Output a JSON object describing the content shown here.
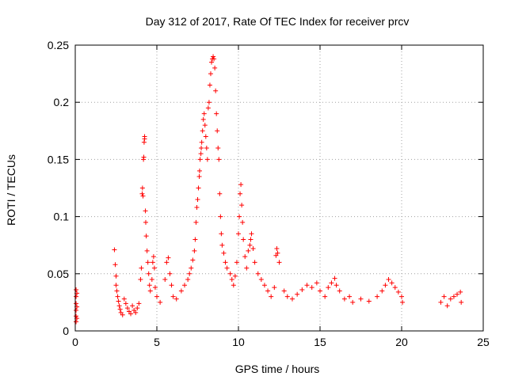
{
  "chart_data": {
    "type": "scatter",
    "title": "Day 312 of 2017, Rate Of TEC Index for receiver prcv",
    "xlabel": "GPS time / hours",
    "ylabel": "ROTI / TECUs",
    "xlim": [
      0,
      25
    ],
    "ylim": [
      0,
      0.25
    ],
    "xticks": [
      0,
      5,
      10,
      15,
      20,
      25
    ],
    "yticks": [
      0,
      0.05,
      0.1,
      0.15,
      0.2,
      0.25
    ],
    "xtick_labels": [
      "0",
      "5",
      "10",
      "15",
      "20",
      "25"
    ],
    "ytick_labels": [
      "0",
      "0.05",
      "0.1",
      "0.15",
      "0.2",
      "0.25"
    ],
    "grid": true,
    "marker": "+",
    "marker_color": "#ff0000",
    "series": [
      {
        "points": [
          [
            0.05,
            0.036
          ],
          [
            0.05,
            0.03
          ],
          [
            0.05,
            0.024
          ],
          [
            0.05,
            0.018
          ],
          [
            0.05,
            0.013
          ],
          [
            0.05,
            0.008
          ],
          [
            0.1,
            0.033
          ],
          [
            0.1,
            0.021
          ],
          [
            0.1,
            0.011
          ],
          [
            2.4,
            0.071
          ],
          [
            2.45,
            0.058
          ],
          [
            2.5,
            0.048
          ],
          [
            2.5,
            0.04
          ],
          [
            2.55,
            0.035
          ],
          [
            2.6,
            0.03
          ],
          [
            2.65,
            0.026
          ],
          [
            2.7,
            0.022
          ],
          [
            2.75,
            0.019
          ],
          [
            2.8,
            0.016
          ],
          [
            2.9,
            0.014
          ],
          [
            3.0,
            0.028
          ],
          [
            3.1,
            0.024
          ],
          [
            3.2,
            0.02
          ],
          [
            3.3,
            0.017
          ],
          [
            3.4,
            0.015
          ],
          [
            3.5,
            0.022
          ],
          [
            3.6,
            0.018
          ],
          [
            3.7,
            0.016
          ],
          [
            3.8,
            0.02
          ],
          [
            3.9,
            0.024
          ],
          [
            4.0,
            0.045
          ],
          [
            4.05,
            0.055
          ],
          [
            4.1,
            0.12
          ],
          [
            4.12,
            0.125
          ],
          [
            4.15,
            0.118
          ],
          [
            4.18,
            0.15
          ],
          [
            4.2,
            0.152
          ],
          [
            4.22,
            0.165
          ],
          [
            4.25,
            0.17
          ],
          [
            4.25,
            0.168
          ],
          [
            4.3,
            0.105
          ],
          [
            4.32,
            0.095
          ],
          [
            4.35,
            0.083
          ],
          [
            4.4,
            0.07
          ],
          [
            4.45,
            0.06
          ],
          [
            4.5,
            0.05
          ],
          [
            4.55,
            0.04
          ],
          [
            4.6,
            0.035
          ],
          [
            4.7,
            0.045
          ],
          [
            4.75,
            0.06
          ],
          [
            4.8,
            0.065
          ],
          [
            4.85,
            0.055
          ],
          [
            4.9,
            0.038
          ],
          [
            5.0,
            0.03
          ],
          [
            5.2,
            0.025
          ],
          [
            5.5,
            0.045
          ],
          [
            5.6,
            0.06
          ],
          [
            5.7,
            0.064
          ],
          [
            5.8,
            0.05
          ],
          [
            5.9,
            0.04
          ],
          [
            6.0,
            0.03
          ],
          [
            6.2,
            0.028
          ],
          [
            6.5,
            0.035
          ],
          [
            6.7,
            0.04
          ],
          [
            6.9,
            0.045
          ],
          [
            7.0,
            0.05
          ],
          [
            7.1,
            0.055
          ],
          [
            7.2,
            0.062
          ],
          [
            7.3,
            0.07
          ],
          [
            7.35,
            0.08
          ],
          [
            7.4,
            0.095
          ],
          [
            7.45,
            0.108
          ],
          [
            7.5,
            0.115
          ],
          [
            7.55,
            0.125
          ],
          [
            7.6,
            0.135
          ],
          [
            7.62,
            0.14
          ],
          [
            7.65,
            0.15
          ],
          [
            7.7,
            0.155
          ],
          [
            7.72,
            0.16
          ],
          [
            7.75,
            0.165
          ],
          [
            7.8,
            0.175
          ],
          [
            7.85,
            0.185
          ],
          [
            7.9,
            0.19
          ],
          [
            7.95,
            0.18
          ],
          [
            8.0,
            0.17
          ],
          [
            8.05,
            0.16
          ],
          [
            8.1,
            0.15
          ],
          [
            8.15,
            0.195
          ],
          [
            8.2,
            0.2
          ],
          [
            8.25,
            0.215
          ],
          [
            8.3,
            0.225
          ],
          [
            8.35,
            0.235
          ],
          [
            8.4,
            0.238
          ],
          [
            8.45,
            0.24
          ],
          [
            8.5,
            0.238
          ],
          [
            8.55,
            0.23
          ],
          [
            8.6,
            0.21
          ],
          [
            8.65,
            0.19
          ],
          [
            8.7,
            0.175
          ],
          [
            8.75,
            0.16
          ],
          [
            8.8,
            0.15
          ],
          [
            8.85,
            0.12
          ],
          [
            8.9,
            0.1
          ],
          [
            8.95,
            0.085
          ],
          [
            9.0,
            0.075
          ],
          [
            9.1,
            0.068
          ],
          [
            9.2,
            0.06
          ],
          [
            9.3,
            0.055
          ],
          [
            9.5,
            0.05
          ],
          [
            9.6,
            0.045
          ],
          [
            9.7,
            0.04
          ],
          [
            9.8,
            0.048
          ],
          [
            9.9,
            0.06
          ],
          [
            10.0,
            0.085
          ],
          [
            10.05,
            0.1
          ],
          [
            10.1,
            0.12
          ],
          [
            10.15,
            0.128
          ],
          [
            10.2,
            0.11
          ],
          [
            10.25,
            0.095
          ],
          [
            10.3,
            0.08
          ],
          [
            10.4,
            0.065
          ],
          [
            10.5,
            0.055
          ],
          [
            10.6,
            0.07
          ],
          [
            10.7,
            0.075
          ],
          [
            10.75,
            0.08
          ],
          [
            10.8,
            0.085
          ],
          [
            10.9,
            0.072
          ],
          [
            11.0,
            0.06
          ],
          [
            11.2,
            0.05
          ],
          [
            11.4,
            0.045
          ],
          [
            11.6,
            0.04
          ],
          [
            11.8,
            0.035
          ],
          [
            12.0,
            0.03
          ],
          [
            12.2,
            0.038
          ],
          [
            12.3,
            0.066
          ],
          [
            12.35,
            0.072
          ],
          [
            12.4,
            0.068
          ],
          [
            12.5,
            0.06
          ],
          [
            12.8,
            0.035
          ],
          [
            13.0,
            0.03
          ],
          [
            13.3,
            0.028
          ],
          [
            13.6,
            0.032
          ],
          [
            13.9,
            0.036
          ],
          [
            14.2,
            0.04
          ],
          [
            14.5,
            0.038
          ],
          [
            14.8,
            0.042
          ],
          [
            15.0,
            0.035
          ],
          [
            15.3,
            0.03
          ],
          [
            15.5,
            0.038
          ],
          [
            15.7,
            0.042
          ],
          [
            15.9,
            0.046
          ],
          [
            16.0,
            0.04
          ],
          [
            16.2,
            0.035
          ],
          [
            16.5,
            0.028
          ],
          [
            16.8,
            0.03
          ],
          [
            17.0,
            0.025
          ],
          [
            17.5,
            0.028
          ],
          [
            18.0,
            0.026
          ],
          [
            18.5,
            0.03
          ],
          [
            18.8,
            0.035
          ],
          [
            19.0,
            0.04
          ],
          [
            19.2,
            0.045
          ],
          [
            19.4,
            0.042
          ],
          [
            19.6,
            0.038
          ],
          [
            19.8,
            0.034
          ],
          [
            20.0,
            0.03
          ],
          [
            20.05,
            0.025
          ],
          [
            22.4,
            0.025
          ],
          [
            22.6,
            0.03
          ],
          [
            22.8,
            0.022
          ],
          [
            23.0,
            0.028
          ],
          [
            23.2,
            0.03
          ],
          [
            23.4,
            0.032
          ],
          [
            23.6,
            0.034
          ],
          [
            23.65,
            0.025
          ]
        ]
      }
    ]
  }
}
